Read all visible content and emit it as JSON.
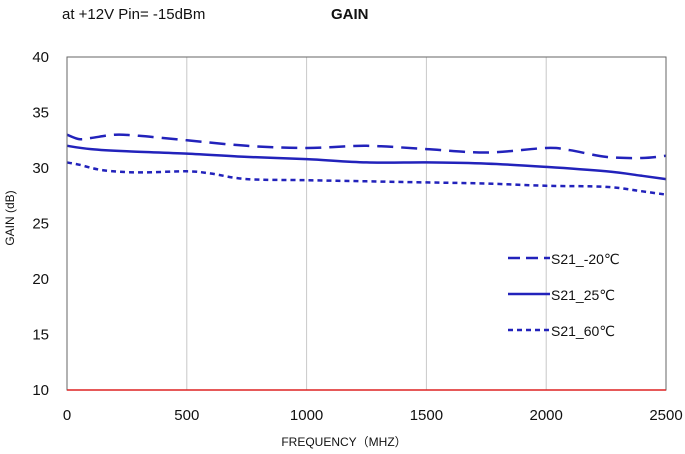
{
  "chart_data": {
    "type": "line",
    "subtitle": "at +12V Pin= -15dBm",
    "title": "GAIN",
    "xlabel": "FREQUENCY（MHZ）",
    "ylabel": "GAIN (dB)",
    "xlim": [
      0,
      2500
    ],
    "ylim": [
      10,
      40
    ],
    "xticks": [
      0,
      500,
      1000,
      1500,
      2000,
      2500
    ],
    "yticks": [
      10,
      15,
      20,
      25,
      30,
      35,
      40
    ],
    "grid": "vertical",
    "legend_position": "right",
    "colors": {
      "series": "#2222bb",
      "xaxis": "#dd2222",
      "grid": "#c8c8c8",
      "frame": "#666666"
    },
    "series": [
      {
        "name": "S21_-20℃",
        "style": "dashed",
        "x": [
          0,
          50,
          100,
          200,
          300,
          500,
          750,
          1000,
          1250,
          1500,
          1750,
          2000,
          2100,
          2250,
          2400,
          2500
        ],
        "y": [
          33.0,
          32.6,
          32.7,
          33.0,
          32.9,
          32.5,
          32.0,
          31.8,
          32.0,
          31.7,
          31.4,
          31.8,
          31.6,
          31.0,
          30.9,
          31.1
        ]
      },
      {
        "name": "S21_25℃",
        "style": "solid",
        "x": [
          0,
          100,
          250,
          500,
          750,
          1000,
          1250,
          1500,
          1750,
          2000,
          2250,
          2400,
          2500
        ],
        "y": [
          32.0,
          31.7,
          31.5,
          31.3,
          31.0,
          30.8,
          30.5,
          30.5,
          30.4,
          30.1,
          29.7,
          29.3,
          29.0
        ]
      },
      {
        "name": "S21_60℃",
        "style": "dotted",
        "x": [
          0,
          50,
          150,
          300,
          500,
          600,
          750,
          1000,
          1250,
          1500,
          1750,
          2000,
          2250,
          2400,
          2500
        ],
        "y": [
          30.5,
          30.3,
          29.8,
          29.6,
          29.7,
          29.5,
          29.0,
          28.9,
          28.8,
          28.7,
          28.6,
          28.4,
          28.3,
          27.9,
          27.6
        ]
      }
    ]
  }
}
